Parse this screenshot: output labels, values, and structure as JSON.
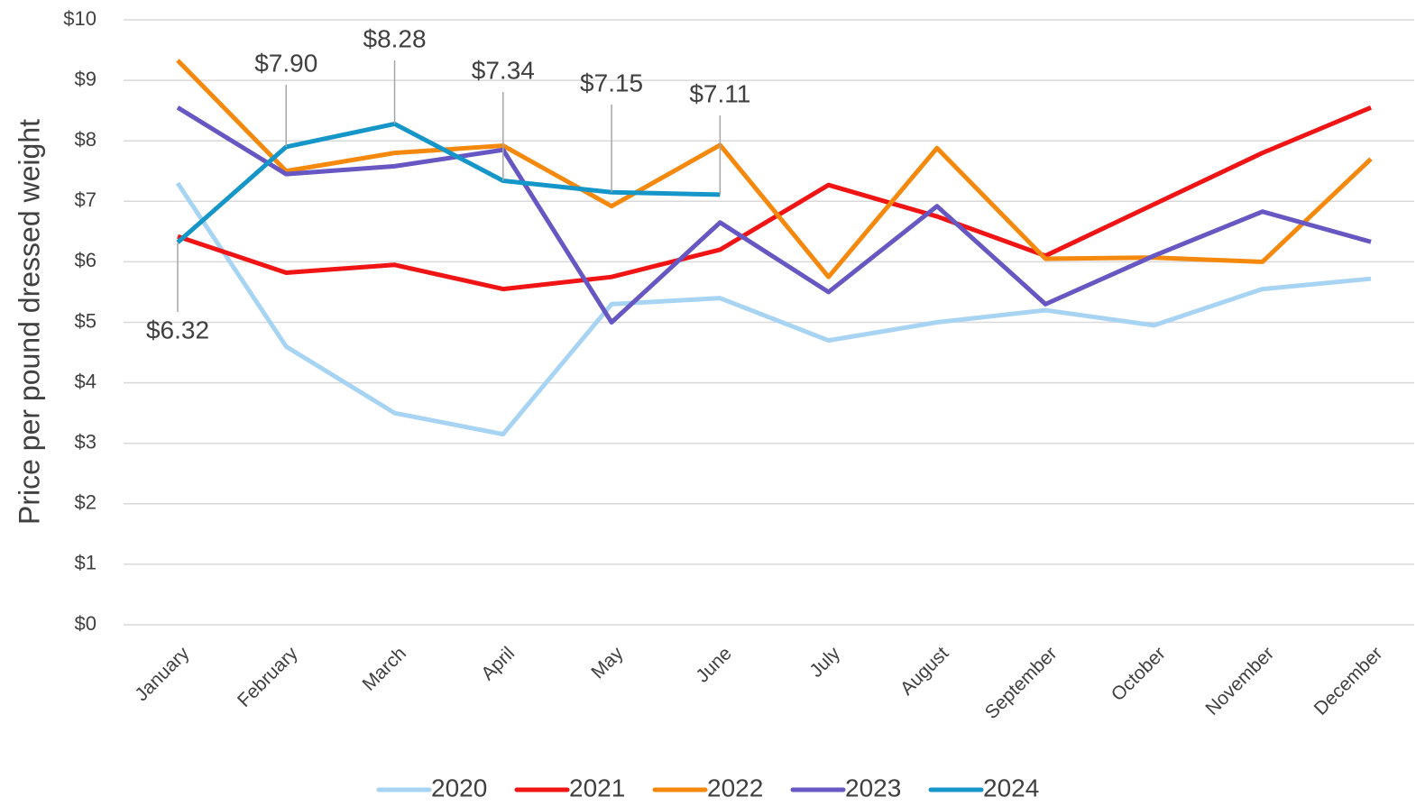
{
  "chart_data": {
    "type": "line",
    "y_axis_label": "Price per pound dressed weight",
    "categories": [
      "January",
      "February",
      "March",
      "April",
      "May",
      "June",
      "July",
      "August",
      "September",
      "October",
      "November",
      "December"
    ],
    "series": [
      {
        "name": "2020",
        "color": "#a8d4f4",
        "values": [
          7.3,
          4.6,
          3.5,
          3.15,
          5.3,
          5.4,
          4.7,
          5.0,
          5.2,
          4.95,
          5.55,
          5.72
        ]
      },
      {
        "name": "2021",
        "color": "#f01414",
        "values": [
          6.42,
          5.82,
          5.95,
          5.55,
          5.75,
          6.2,
          7.27,
          6.75,
          6.1,
          6.95,
          7.8,
          8.55
        ]
      },
      {
        "name": "2022",
        "color": "#f5890e",
        "values": [
          9.33,
          7.5,
          7.8,
          7.92,
          6.92,
          7.93,
          5.75,
          7.88,
          6.05,
          6.07,
          6.0,
          7.7
        ]
      },
      {
        "name": "2023",
        "color": "#6657c2",
        "values": [
          8.55,
          7.45,
          7.58,
          7.85,
          5.0,
          6.65,
          5.5,
          6.92,
          5.3,
          6.1,
          6.83,
          6.33
        ]
      },
      {
        "name": "2024",
        "color": "#1596c8",
        "values": [
          6.32,
          7.9,
          8.28,
          7.34,
          7.15,
          7.11,
          null,
          null,
          null,
          null,
          null,
          null
        ],
        "value_labels": [
          "$6.32",
          "$7.90",
          "$8.28",
          "$7.34",
          "$7.15",
          "$7.11",
          null,
          null,
          null,
          null,
          null,
          null
        ]
      }
    ],
    "ylim": [
      0,
      10
    ],
    "yticks": [
      {
        "value": 0,
        "label": "$0"
      },
      {
        "value": 1,
        "label": "$1"
      },
      {
        "value": 2,
        "label": "$2"
      },
      {
        "value": 3,
        "label": "$3"
      },
      {
        "value": 4,
        "label": "$4"
      },
      {
        "value": 5,
        "label": "$5"
      },
      {
        "value": 6,
        "label": "$6"
      },
      {
        "value": 7,
        "label": "$7"
      },
      {
        "value": 8,
        "label": "$8"
      },
      {
        "value": 9,
        "label": "$9"
      },
      {
        "value": 10,
        "label": "$10"
      }
    ],
    "grid": true,
    "legend": "bottom"
  }
}
